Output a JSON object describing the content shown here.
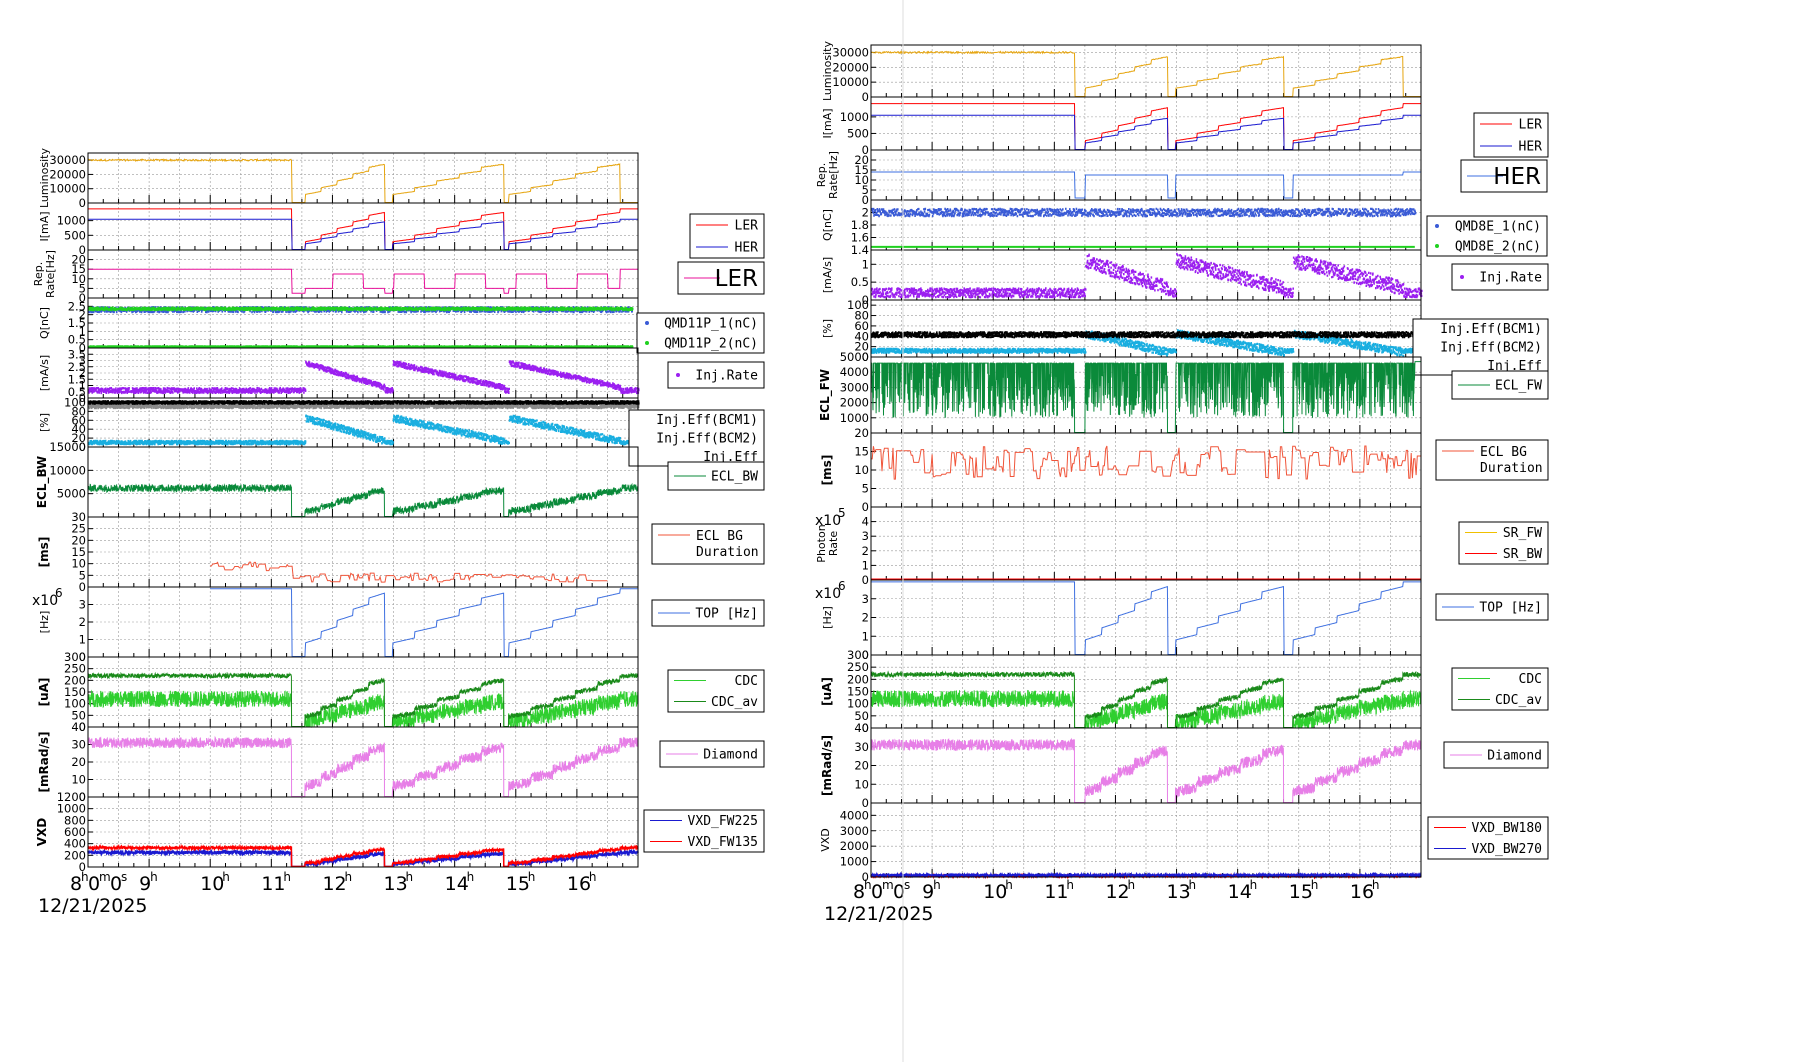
{
  "colors": {
    "gold": "#e6a50f",
    "red": "#ff0000",
    "blue": "#1a1ad0",
    "pink": "#e8119a",
    "royal": "#3a5bd6",
    "lime": "#1fd11f",
    "purple": "#9b1ff0",
    "black": "#000000",
    "gray": "#8a8a8a",
    "cyan": "#19aee0",
    "ecl": "#0a8a3a",
    "orange": "#f0553a",
    "top": "#3d6fe0",
    "cdc": "#2fcf2f",
    "cdcav": "#1a8a1a",
    "diamond": "#e77fe7",
    "grid": "#9a9a9a",
    "srfw": "#f0c000",
    "mag": "#d02070"
  },
  "xaxis": {
    "hours": [
      "8",
      "9",
      "10",
      "11",
      "12",
      "13",
      "14",
      "15",
      "16"
    ],
    "hour_superscript": "h",
    "first_tick_label": {
      "h": "h",
      "m": "m",
      "s": "s",
      "zeros": "0",
      "base": "8"
    },
    "date": "12/21/2025"
  },
  "chart_data": [
    {
      "type": "line",
      "figure": "left",
      "x_range_hours": [
        8.0,
        17.0
      ],
      "panels": [
        {
          "id": "lumi",
          "ylabel": "Luminosity",
          "ylim": [
            0,
            35000
          ],
          "yticks": [
            0,
            10000,
            20000,
            30000
          ],
          "series": [
            {
              "color": "gold"
            }
          ]
        },
        {
          "id": "current",
          "ylabel": "I[mA]",
          "ylim": [
            0,
            1600
          ],
          "yticks": [
            0,
            500,
            1000
          ],
          "series": [
            {
              "name": "LER",
              "color": "red"
            },
            {
              "name": "HER",
              "color": "blue"
            }
          ]
        },
        {
          "id": "rep",
          "ylabel": "Rep. Rate[Hz]",
          "ylim": [
            0,
            25
          ],
          "yticks": [
            0,
            5,
            10,
            15,
            20
          ],
          "series": [
            {
              "color": "pink"
            }
          ],
          "big_legend": "LER"
        },
        {
          "id": "charge",
          "ylabel": "Q[nC]",
          "ylim": [
            0,
            3
          ],
          "yticks": [
            0,
            0.5,
            1,
            1.5,
            2,
            2.5
          ],
          "series": [
            {
              "name": "QMD11P_1(nC)",
              "color": "royal",
              "dots": true
            },
            {
              "name": "QMD11P_2(nC)",
              "color": "lime",
              "dots": true
            }
          ]
        },
        {
          "id": "injrate",
          "ylabel": "[mA/s]",
          "ylim": [
            0,
            4
          ],
          "yticks": [
            0,
            0.5,
            1,
            1.5,
            2,
            2.5,
            3,
            3.5
          ],
          "series": [
            {
              "name": "Inj.Rate",
              "color": "purple",
              "dots": true
            }
          ]
        },
        {
          "id": "injeff",
          "ylabel": "[%]",
          "ylim": [
            0,
            110
          ],
          "yticks": [
            0,
            20,
            40,
            60,
            80,
            100
          ],
          "series": [
            {
              "name": "Inj.Eff(BCM1)",
              "color": "black"
            },
            {
              "name": "Inj.Eff(BCM2)",
              "color": "gray"
            },
            {
              "name": "Inj.Eff",
              "color": "cyan"
            }
          ]
        },
        {
          "id": "eclbw",
          "ylabel": "ECL_BW",
          "ylabel_bold": true,
          "ylim": [
            0,
            15000
          ],
          "yticks": [
            5000,
            10000,
            15000
          ],
          "series": [
            {
              "name": "ECL_BW",
              "color": "ecl"
            }
          ]
        },
        {
          "id": "eclbg",
          "ylabel": "[ms]",
          "ylabel_bold": true,
          "ylim": [
            0,
            30
          ],
          "yticks": [
            0,
            5,
            10,
            15,
            20,
            25,
            30
          ],
          "series": [
            {
              "name": "ECL BG Duration",
              "color": "orange"
            }
          ]
        },
        {
          "id": "top",
          "ylabel": "[Hz]",
          "exponent": "x10",
          "exponent_power": "6",
          "ylim": [
            0,
            4
          ],
          "yticks": [
            0,
            1,
            2,
            3
          ],
          "series": [
            {
              "name": "TOP [Hz]",
              "color": "top"
            }
          ]
        },
        {
          "id": "cdc",
          "ylabel": "[uA]",
          "ylabel_bold": true,
          "ylim": [
            0,
            300
          ],
          "yticks": [
            0,
            50,
            100,
            150,
            200,
            250,
            300
          ],
          "series": [
            {
              "name": "CDC",
              "color": "cdc"
            },
            {
              "name": "CDC_av",
              "color": "cdcav"
            }
          ]
        },
        {
          "id": "diamond",
          "ylabel": "[mRad/s]",
          "ylabel_bold": true,
          "ylim": [
            0,
            40
          ],
          "yticks": [
            0,
            10,
            20,
            30,
            40
          ],
          "series": [
            {
              "name": "Diamond",
              "color": "diamond"
            }
          ]
        },
        {
          "id": "vxd",
          "ylabel": "VXD",
          "ylabel_bold": true,
          "ylim": [
            0,
            1200
          ],
          "yticks": [
            0,
            200,
            400,
            600,
            800,
            1000,
            1200
          ],
          "series": [
            {
              "name": "VXD_FW225",
              "color": "blue"
            },
            {
              "name": "VXD_FW135",
              "color": "red"
            }
          ]
        }
      ]
    },
    {
      "type": "line",
      "figure": "right",
      "x_range_hours": [
        8.0,
        17.0
      ],
      "panels": [
        {
          "id": "lumi",
          "ylabel": "Luminosity",
          "ylim": [
            0,
            35000
          ],
          "yticks": [
            0,
            10000,
            20000,
            30000
          ],
          "series": [
            {
              "color": "gold"
            }
          ]
        },
        {
          "id": "current",
          "ylabel": "I[mA]",
          "ylim": [
            0,
            1600
          ],
          "yticks": [
            0,
            500,
            1000
          ],
          "series": [
            {
              "name": "LER",
              "color": "red"
            },
            {
              "name": "HER",
              "color": "blue"
            }
          ]
        },
        {
          "id": "rep",
          "ylabel": "Rep. Rate[Hz]",
          "ylim": [
            0,
            25
          ],
          "yticks": [
            0,
            5,
            10,
            15,
            20
          ],
          "series": [
            {
              "color": "top"
            }
          ],
          "big_legend": "HER"
        },
        {
          "id": "charge",
          "ylabel": "Q[nC]",
          "ylim": [
            1.4,
            2.2
          ],
          "yticks": [
            1.4,
            1.6,
            1.8,
            2
          ],
          "series": [
            {
              "name": "QMD8E_1(nC)",
              "color": "royal",
              "dots": true
            },
            {
              "name": "QMD8E_2(nC)",
              "color": "lime",
              "dots": true
            }
          ]
        },
        {
          "id": "injrate",
          "ylabel": "[mA/s]",
          "ylim": [
            0,
            1.4
          ],
          "yticks": [
            0,
            0.5,
            1
          ],
          "series": [
            {
              "name": "Inj.Rate",
              "color": "purple",
              "dots": true
            }
          ]
        },
        {
          "id": "injeff",
          "ylabel": "[%]",
          "ylim": [
            0,
            110
          ],
          "yticks": [
            0,
            20,
            40,
            60,
            80,
            100
          ],
          "series": [
            {
              "name": "Inj.Eff(BCM1)",
              "color": "black"
            },
            {
              "name": "Inj.Eff(BCM2)",
              "color": "gray"
            },
            {
              "name": "Inj.Eff",
              "color": "cyan"
            }
          ]
        },
        {
          "id": "eclfw",
          "ylabel": "ECL_FW",
          "ylabel_bold": true,
          "ylim": [
            0,
            5000
          ],
          "yticks": [
            1000,
            2000,
            3000,
            4000,
            5000
          ],
          "series": [
            {
              "name": "ECL_FW",
              "color": "ecl"
            }
          ]
        },
        {
          "id": "eclbg",
          "ylabel": "[ms]",
          "ylabel_bold": true,
          "ylim": [
            0,
            20
          ],
          "yticks": [
            0,
            5,
            10,
            15,
            20
          ],
          "series": [
            {
              "name": "ECL BG Duration",
              "color": "orange"
            }
          ]
        },
        {
          "id": "photon",
          "ylabel": "Photon Rate",
          "exponent": "x10",
          "exponent_power": "5",
          "ylim": [
            0,
            5
          ],
          "yticks": [
            0,
            1,
            2,
            3,
            4
          ],
          "series": [
            {
              "name": "SR_FW",
              "color": "srfw"
            },
            {
              "name": "SR_BW",
              "color": "red"
            }
          ]
        },
        {
          "id": "top",
          "ylabel": "[Hz]",
          "exponent": "x10",
          "exponent_power": "6",
          "ylim": [
            0,
            4
          ],
          "yticks": [
            0,
            1,
            2,
            3
          ],
          "series": [
            {
              "name": "TOP [Hz]",
              "color": "top"
            }
          ]
        },
        {
          "id": "cdc",
          "ylabel": "[uA]",
          "ylabel_bold": true,
          "ylim": [
            0,
            300
          ],
          "yticks": [
            0,
            50,
            100,
            150,
            200,
            250,
            300
          ],
          "series": [
            {
              "name": "CDC",
              "color": "cdc"
            },
            {
              "name": "CDC_av",
              "color": "cdcav"
            }
          ]
        },
        {
          "id": "diamond",
          "ylabel": "[mRad/s]",
          "ylabel_bold": true,
          "ylim": [
            0,
            40
          ],
          "yticks": [
            0,
            10,
            20,
            30,
            40
          ],
          "series": [
            {
              "name": "Diamond",
              "color": "diamond"
            }
          ]
        },
        {
          "id": "vxd",
          "ylabel": "VXD",
          "ylim": [
            0,
            4800
          ],
          "yticks": [
            0,
            1000,
            2000,
            3000,
            4000
          ],
          "series": [
            {
              "name": "VXD_BW180",
              "color": "red"
            },
            {
              "name": "VXD_BW270",
              "color": "blue"
            }
          ]
        }
      ]
    }
  ]
}
